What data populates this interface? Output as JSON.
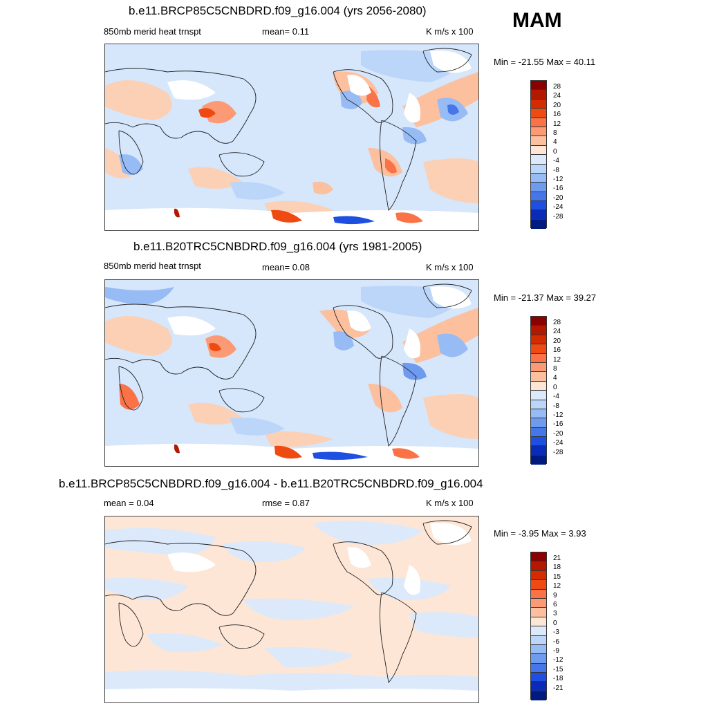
{
  "season": "MAM",
  "panels": [
    {
      "title": "b.e11.BRCP85C5CNBDRD.f09_g16.004 (yrs 2056-2080)",
      "left_label": "850mb merid heat trnspt",
      "center_label": "mean=   0.11",
      "right_label": "K m/s x 100",
      "minmax": "Min = -21.55 Max =  40.11",
      "colorbar": {
        "labels": [
          "28",
          "24",
          "20",
          "16",
          "12",
          "8",
          "4",
          "0",
          "-4",
          "-8",
          "-12",
          "-16",
          "-20",
          "-24",
          "-28"
        ],
        "colors": [
          "#8b0000",
          "#b31800",
          "#d42c00",
          "#ee4a12",
          "#fa7246",
          "#fb9a74",
          "#fcc09e",
          "#fde6d6",
          "#dbe9fb",
          "#bcd6fa",
          "#97bbf5",
          "#6f9bef",
          "#4677ea",
          "#1f4fe0",
          "#0a2bb8",
          "#001a80"
        ]
      }
    },
    {
      "title": "b.e11.B20TRC5CNBDRD.f09_g16.004 (yrs 1981-2005)",
      "left_label": "850mb merid heat trnspt",
      "center_label": "mean=   0.08",
      "right_label": "K m/s x 100",
      "minmax": "Min = -21.37 Max =  39.27",
      "colorbar": {
        "labels": [
          "28",
          "24",
          "20",
          "16",
          "12",
          "8",
          "4",
          "0",
          "-4",
          "-8",
          "-12",
          "-16",
          "-20",
          "-24",
          "-28"
        ],
        "colors": [
          "#8b0000",
          "#b31800",
          "#d42c00",
          "#ee4a12",
          "#fa7246",
          "#fb9a74",
          "#fcc09e",
          "#fde6d6",
          "#dbe9fb",
          "#bcd6fa",
          "#97bbf5",
          "#6f9bef",
          "#4677ea",
          "#1f4fe0",
          "#0a2bb8",
          "#001a80"
        ]
      }
    },
    {
      "title": "b.e11.BRCP85C5CNBDRD.f09_g16.004 - b.e11.B20TRC5CNBDRD.f09_g16.004",
      "left_label": "mean =   0.04",
      "center_label": "rmse =   0.87",
      "right_label": "K m/s x 100",
      "minmax": "Min =  -3.95 Max =   3.93",
      "colorbar": {
        "labels": [
          "21",
          "18",
          "15",
          "12",
          "9",
          "6",
          "3",
          "0",
          "-3",
          "-6",
          "-9",
          "-12",
          "-15",
          "-18",
          "-21"
        ],
        "colors": [
          "#8b0000",
          "#b31800",
          "#d42c00",
          "#ee4a12",
          "#fa7246",
          "#fb9a74",
          "#fcc09e",
          "#fde6d6",
          "#dbe9fb",
          "#bcd6fa",
          "#97bbf5",
          "#6f9bef",
          "#4677ea",
          "#1f4fe0",
          "#0a2bb8",
          "#001a80"
        ]
      }
    }
  ]
}
